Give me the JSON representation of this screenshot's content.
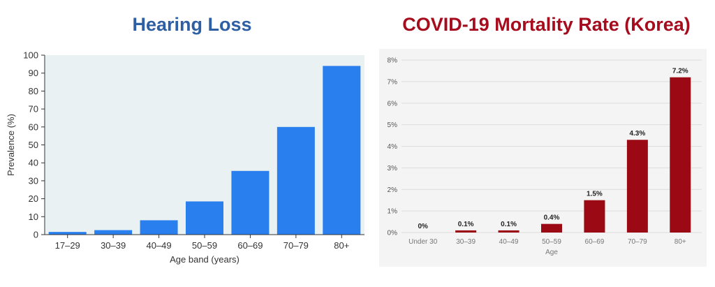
{
  "colors": {
    "left_title": "#2e5fa3",
    "right_title": "#a50d1e",
    "left_bar": "#2a7fef",
    "right_bar": "#9b0a14",
    "left_plot_bg": "#e9f1f3",
    "right_panel_bg": "#f4f4f4"
  },
  "chart_data": [
    {
      "type": "bar",
      "title": "Hearing Loss",
      "xlabel": "Age band (years)",
      "ylabel": "Prevalence (%)",
      "categories": [
        "17–29",
        "30–39",
        "40–49",
        "50–59",
        "60–69",
        "70–79",
        "80+"
      ],
      "values": [
        1.5,
        2.5,
        8,
        18.5,
        35.5,
        60,
        94
      ],
      "ylim": [
        0,
        100
      ],
      "yticks": [
        "0",
        "10",
        "20",
        "30",
        "40",
        "50",
        "60",
        "70",
        "80",
        "90",
        "100"
      ],
      "grid": false,
      "legend": "none"
    },
    {
      "type": "bar",
      "title": "COVID-19 Mortality Rate (Korea)",
      "xlabel": "Age",
      "ylabel": "",
      "categories": [
        "Under 30",
        "30–39",
        "40–49",
        "50–59",
        "60–69",
        "70–79",
        "80+"
      ],
      "values": [
        0,
        0.1,
        0.1,
        0.4,
        1.5,
        4.3,
        7.2
      ],
      "data_labels": [
        "0%",
        "0.1%",
        "0.1%",
        "0.4%",
        "1.5%",
        "4.3%",
        "7.2%"
      ],
      "ylim": [
        0,
        8
      ],
      "yticks": [
        "0%",
        "1%",
        "2%",
        "3%",
        "4%",
        "5%",
        "6%",
        "7%",
        "8%"
      ],
      "grid": true,
      "legend": "none"
    }
  ]
}
